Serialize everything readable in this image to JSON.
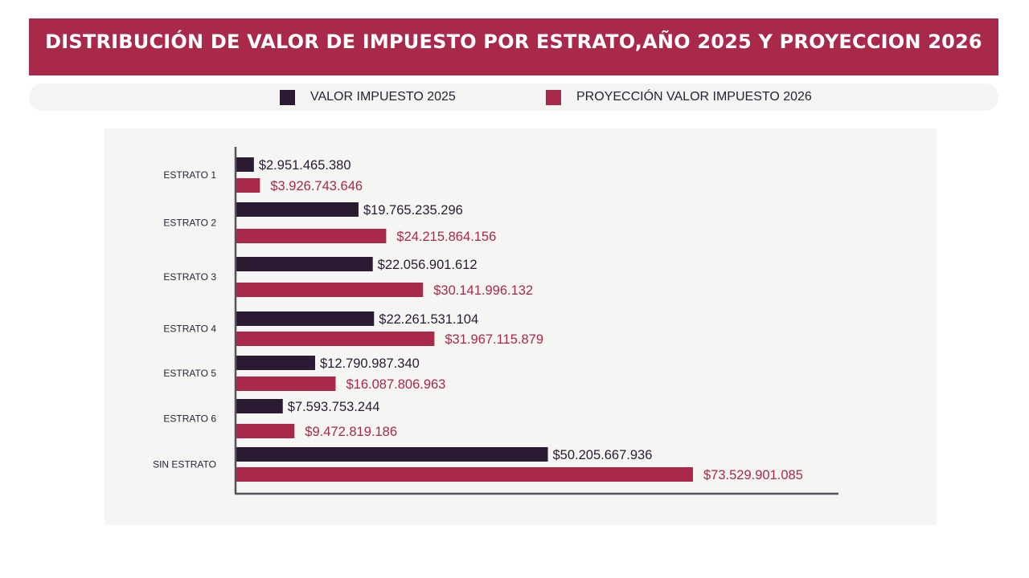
{
  "header": {
    "title": "DISTRIBUCIÓN DE VALOR DE IMPUESTO POR ESTRATO,AÑO 2025 Y PROYECCION 2026"
  },
  "legend": {
    "items": [
      {
        "label": "VALOR IMPUESTO 2025",
        "color": "#2a1b33"
      },
      {
        "label": "PROYECCIÓN VALOR IMPUESTO 2026",
        "color": "#a8294a"
      }
    ]
  },
  "colors": {
    "brand": "#a8294a",
    "series_2025": "#2a1b33",
    "series_2026": "#a8294a",
    "panel_bg": "#f5f5f3",
    "axis": "#55525c"
  },
  "chart_data": {
    "type": "bar",
    "orientation": "horizontal",
    "title": "DISTRIBUCIÓN DE VALOR DE IMPUESTO POR ESTRATO,AÑO 2025 Y PROYECCION 2026",
    "xlabel": "",
    "ylabel": "",
    "grid": false,
    "legend_position": "top",
    "xlim": [
      0,
      97000000000
    ],
    "categories": [
      "ESTRATO 1",
      "ESTRATO 2",
      "ESTRATO 3",
      "ESTRATO 4",
      "ESTRATO 5",
      "ESTRATO 6",
      "SIN ESTRATO"
    ],
    "series": [
      {
        "name": "VALOR IMPUESTO 2025",
        "color": "#2a1b33",
        "values": [
          2951465380,
          19765235296,
          22056901612,
          22261531104,
          12790987340,
          7593753244,
          50205667936
        ],
        "labels": [
          "$2.951.465.380",
          "$19.765.235.296",
          "$22.056.901.612",
          "$22.261.531.104",
          "$12.790.987.340",
          "$7.593.753.244",
          "$50.205.667.936"
        ]
      },
      {
        "name": "PROYECCIÓN VALOR IMPUESTO 2026",
        "color": "#a8294a",
        "values": [
          3926743646,
          24215864156,
          30141996132,
          31967115879,
          16087806963,
          9472819186,
          73529901085
        ],
        "labels": [
          "$3.926.743.646",
          "$24.215.864.156",
          "$30.141.996.132",
          "$31.967.115.879",
          "$16.087.806.963",
          "$9.472.819.186",
          "$73.529.901.085"
        ]
      }
    ]
  }
}
